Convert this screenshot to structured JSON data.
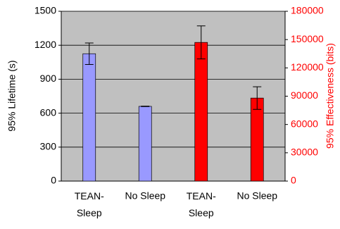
{
  "chart_data": {
    "type": "bar",
    "categories": [
      "TEAN-Sleep",
      "No Sleep",
      "TEAN-Sleep",
      "No Sleep"
    ],
    "y_label": "95% Lifetime (s)",
    "y2_label": "95% Effectiveness (bits)",
    "ylim": [
      0,
      1500
    ],
    "yticks": [
      0,
      300,
      600,
      900,
      1200,
      1500
    ],
    "y2lim": [
      0,
      180000
    ],
    "y2ticks": [
      0,
      30000,
      60000,
      90000,
      120000,
      150000,
      180000
    ],
    "grid": true,
    "series": [
      {
        "color": "#9999ff",
        "values": [
          1125,
          660,
          null,
          null
        ],
        "errors": [
          95,
          2,
          null,
          null
        ]
      },
      {
        "color": "#ff0000",
        "axis": "y2",
        "values": [
          null,
          null,
          147000,
          88000
        ],
        "errors": [
          null,
          null,
          17500,
          12000
        ]
      }
    ]
  }
}
